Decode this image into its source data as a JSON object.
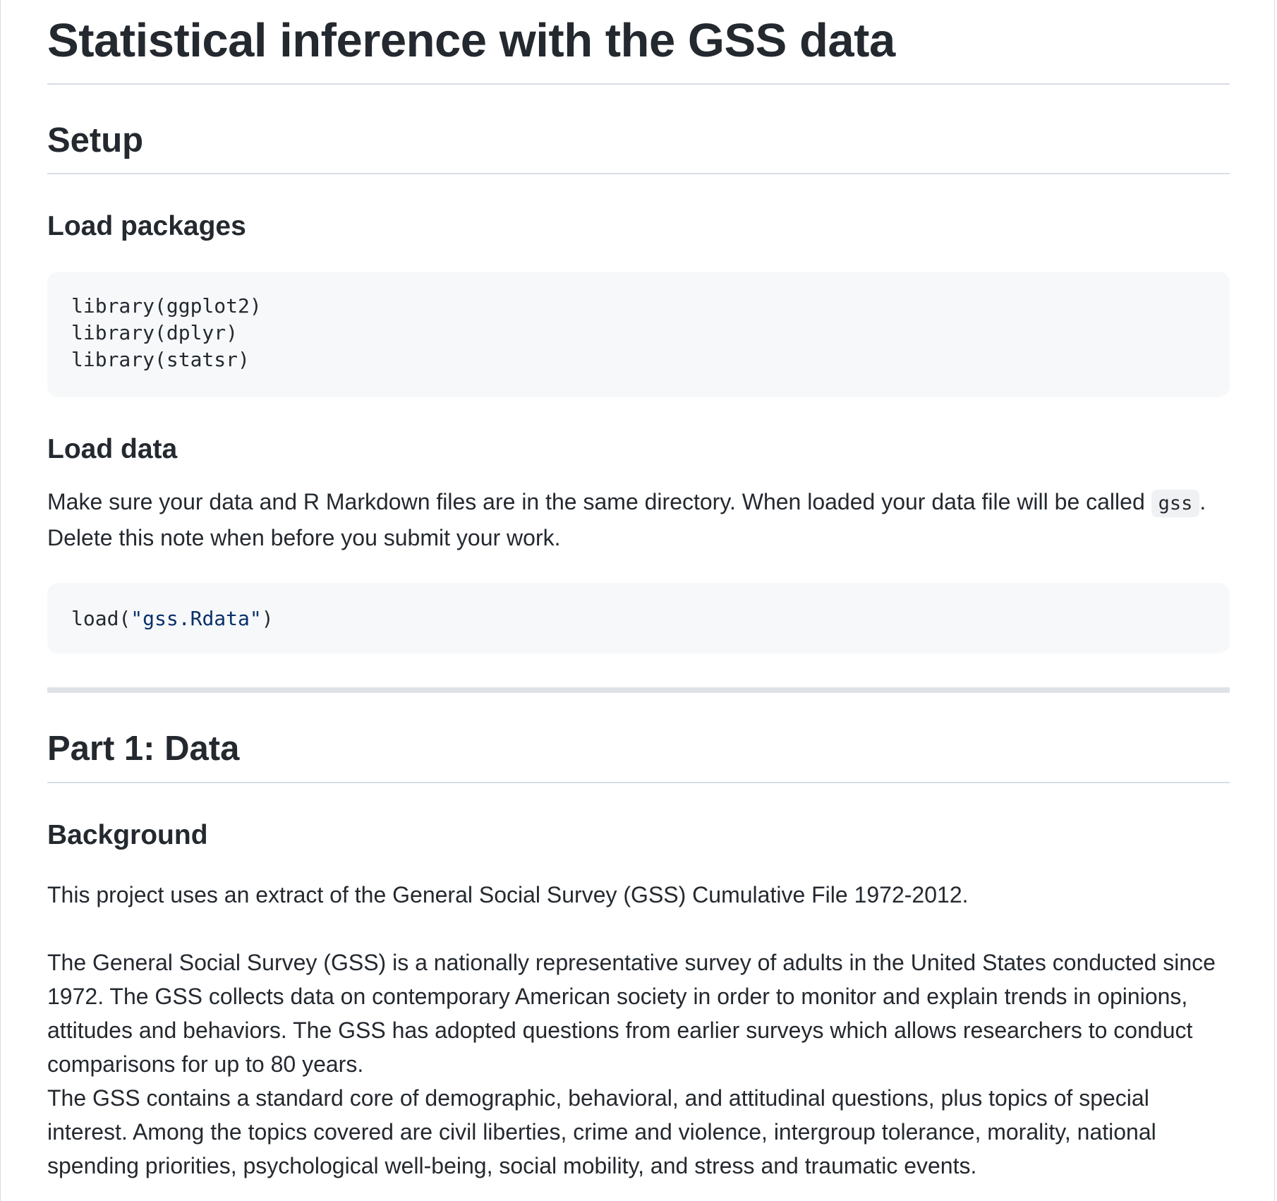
{
  "doc": {
    "title": "Statistical inference with the GSS data",
    "setup": {
      "heading": "Setup",
      "load_packages": {
        "heading": "Load packages",
        "code_lines": [
          "library(ggplot2)",
          "library(dplyr)",
          "library(statsr)"
        ]
      },
      "load_data": {
        "heading": "Load data",
        "note_before": "Make sure your data and R Markdown files are in the same directory. When loaded your data file will be called ",
        "note_code": "gss",
        "note_after": ". Delete this note when before you submit your work.",
        "code_fn": "load(",
        "code_str": "\"gss.Rdata\"",
        "code_close": ")"
      }
    },
    "part1": {
      "heading": "Part 1: Data",
      "background": {
        "heading": "Background",
        "paragraph1": "This project uses an extract of the General Social Survey (GSS) Cumulative File 1972-2012.",
        "paragraph2_line1": "The General Social Survey (GSS) is a nationally representative survey of adults in the United States conducted since 1972. The GSS collects data on contemporary American society in order to monitor and explain trends in opinions, attitudes and behaviors. The GSS has adopted questions from earlier surveys which allows researchers to conduct comparisons for up to 80 years.",
        "paragraph2_line2": "The GSS contains a standard core of demographic, behavioral, and attitudinal questions, plus topics of special interest. Among the topics covered are civil liberties, crime and violence, intergroup tolerance, morality, national spending priorities, psychological well-being, social mobility, and stress and traumatic events."
      }
    }
  }
}
